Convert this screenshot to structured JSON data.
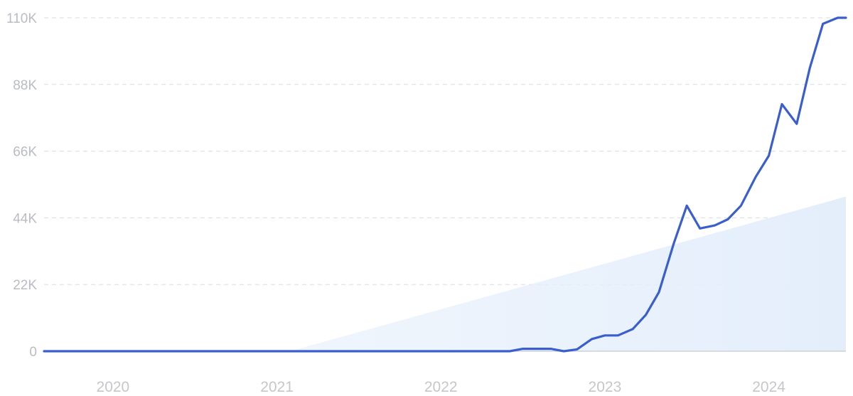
{
  "chart_data": {
    "type": "line",
    "title": "",
    "xlabel": "",
    "ylabel": "",
    "x_tick_labels": [
      "2020",
      "2021",
      "2022",
      "2023",
      "2024"
    ],
    "x_tick_values": [
      2020.0,
      2021.0,
      2022.0,
      2023.0,
      2024.0
    ],
    "y_tick_labels": [
      "0",
      "22K",
      "44K",
      "66K",
      "88K",
      "110K"
    ],
    "y_tick_values": [
      0,
      22000,
      44000,
      66000,
      88000,
      110000
    ],
    "xlim": [
      2019.58,
      2024.47
    ],
    "ylim": [
      0,
      110000
    ],
    "grid": true,
    "line_color": "#3a5fcd",
    "trend_fill_color": "#e4eefb",
    "series": [
      {
        "x": [
          2019.58,
          2020.0,
          2020.5,
          2021.0,
          2021.5,
          2022.0,
          2022.33,
          2022.42,
          2022.5,
          2022.58,
          2022.67,
          2022.75,
          2022.83,
          2022.92,
          2023.0,
          2023.08,
          2023.17,
          2023.25,
          2023.33,
          2023.42,
          2023.5,
          2023.58,
          2023.67,
          2023.75,
          2023.83,
          2023.92,
          2024.0,
          2024.08,
          2024.17,
          2024.25,
          2024.33,
          2024.42,
          2024.47
        ],
        "y": [
          0,
          0,
          0,
          0,
          0,
          0,
          0,
          0,
          800,
          800,
          800,
          0,
          600,
          4000,
          5200,
          5200,
          7300,
          12000,
          19500,
          35500,
          48000,
          40500,
          41500,
          43500,
          48000,
          57500,
          64500,
          81500,
          75000,
          93500,
          108000,
          110000,
          110000
        ]
      }
    ],
    "trend": {
      "x": [
        2021.08,
        2024.47
      ],
      "y": [
        0,
        51000
      ]
    }
  }
}
